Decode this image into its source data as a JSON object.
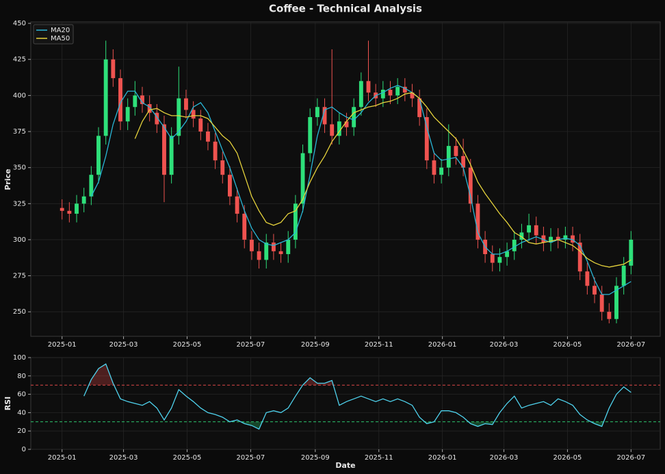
{
  "chart_data": [
    {
      "type": "candlestick",
      "title": "Coffee - Technical Analysis",
      "ylabel": "Price",
      "x": [
        0,
        7,
        14,
        21,
        28,
        35,
        42,
        49,
        56,
        63,
        70,
        77,
        84,
        91,
        98,
        105,
        112,
        119,
        126,
        133,
        140,
        147,
        154,
        161,
        168,
        175,
        182,
        189,
        196,
        203,
        210,
        217,
        224,
        231,
        238,
        245,
        252,
        259,
        266,
        273,
        280,
        287,
        294,
        301,
        308,
        315,
        322,
        329,
        336,
        343,
        350,
        357,
        364,
        371,
        378,
        385,
        392,
        399,
        406,
        413,
        420,
        427,
        434,
        441,
        448,
        455,
        462,
        469,
        476,
        483,
        490,
        497,
        504,
        511,
        518,
        525,
        532,
        539,
        546
      ],
      "open": [
        322,
        320,
        318,
        325,
        330,
        345,
        372,
        425,
        412,
        382,
        392,
        400,
        394,
        388,
        380,
        345,
        372,
        398,
        390,
        384,
        375,
        368,
        355,
        345,
        330,
        318,
        300,
        292,
        286,
        298,
        292,
        290,
        300,
        325,
        360,
        385,
        392,
        380,
        372,
        382,
        378,
        392,
        410,
        402,
        398,
        404,
        400,
        406,
        402,
        398,
        385,
        355,
        345,
        350,
        365,
        358,
        350,
        325,
        300,
        290,
        284,
        288,
        292,
        300,
        305,
        310,
        303,
        298,
        302,
        300,
        303,
        298,
        278,
        268,
        262,
        250,
        245,
        268,
        282
      ],
      "high": [
        328,
        326,
        331,
        336,
        351,
        378,
        438,
        432,
        418,
        398,
        410,
        406,
        400,
        394,
        386,
        378,
        420,
        404,
        396,
        390,
        381,
        374,
        361,
        351,
        336,
        324,
        306,
        298,
        304,
        304,
        298,
        306,
        331,
        366,
        391,
        398,
        398,
        432,
        388,
        388,
        398,
        416,
        438,
        408,
        410,
        410,
        412,
        412,
        408,
        404,
        391,
        361,
        356,
        380,
        371,
        370,
        356,
        331,
        306,
        296,
        294,
        298,
        306,
        311,
        318,
        316,
        309,
        308,
        308,
        309,
        309,
        304,
        284,
        274,
        268,
        256,
        274,
        288,
        306
      ],
      "low": [
        314,
        312,
        312,
        319,
        324,
        339,
        366,
        406,
        376,
        376,
        386,
        388,
        382,
        374,
        326,
        339,
        366,
        384,
        378,
        369,
        362,
        349,
        339,
        324,
        312,
        294,
        286,
        280,
        280,
        286,
        284,
        284,
        294,
        319,
        354,
        379,
        374,
        366,
        366,
        372,
        372,
        386,
        396,
        392,
        392,
        394,
        394,
        396,
        392,
        379,
        349,
        339,
        339,
        344,
        352,
        344,
        319,
        294,
        284,
        278,
        278,
        282,
        286,
        294,
        299,
        297,
        292,
        292,
        294,
        294,
        292,
        272,
        262,
        256,
        244,
        242,
        242,
        262,
        276
      ],
      "close": [
        320,
        318,
        325,
        330,
        345,
        372,
        425,
        412,
        382,
        392,
        400,
        394,
        388,
        380,
        345,
        372,
        398,
        390,
        384,
        375,
        368,
        355,
        345,
        330,
        318,
        300,
        292,
        286,
        298,
        292,
        290,
        300,
        325,
        360,
        385,
        392,
        380,
        372,
        382,
        378,
        392,
        410,
        402,
        398,
        404,
        400,
        406,
        402,
        398,
        385,
        355,
        345,
        350,
        365,
        358,
        350,
        325,
        300,
        290,
        284,
        288,
        292,
        300,
        305,
        310,
        303,
        298,
        302,
        300,
        303,
        298,
        278,
        268,
        262,
        250,
        245,
        268,
        282,
        300
      ],
      "up_color": "#2ee07a",
      "down_color": "#ef5350",
      "series": [
        {
          "name": "MA20",
          "color": "#29b6d6",
          "values": [
            null,
            null,
            null,
            null,
            330,
            340,
            358,
            380,
            395,
            403,
            403,
            395,
            392,
            385,
            378,
            370,
            375,
            382,
            392,
            395,
            388,
            375,
            362,
            350,
            335,
            320,
            308,
            300,
            297,
            296,
            298,
            300,
            305,
            320,
            345,
            372,
            390,
            392,
            388,
            385,
            383,
            388,
            395,
            400,
            402,
            405,
            407,
            405,
            402,
            398,
            378,
            360,
            355,
            356,
            357,
            350,
            330,
            305,
            295,
            290,
            290,
            292,
            295,
            298,
            300,
            302,
            300,
            298,
            300,
            301,
            300,
            296,
            285,
            272,
            262,
            262,
            265,
            268,
            271
          ]
        },
        {
          "name": "MA50",
          "color": "#e6d33c",
          "values": [
            null,
            null,
            null,
            null,
            null,
            null,
            null,
            null,
            null,
            null,
            370,
            382,
            390,
            391,
            388,
            386,
            386,
            385,
            386,
            386,
            384,
            378,
            372,
            368,
            360,
            345,
            330,
            320,
            312,
            310,
            312,
            318,
            320,
            328,
            340,
            350,
            358,
            368,
            375,
            382,
            388,
            390,
            392,
            393,
            395,
            396,
            398,
            401,
            402,
            398,
            392,
            385,
            380,
            375,
            370,
            362,
            352,
            340,
            332,
            325,
            318,
            312,
            305,
            302,
            298,
            297,
            298,
            299,
            300,
            298,
            296,
            292,
            287,
            284,
            282,
            281,
            282,
            283,
            286
          ]
        }
      ],
      "xlim": [
        -30,
        574
      ],
      "ylim": [
        233,
        451
      ],
      "xticks": [
        {
          "value": 0,
          "label": "2025-01"
        },
        {
          "value": 59,
          "label": "2025-03"
        },
        {
          "value": 120,
          "label": "2025-05"
        },
        {
          "value": 181,
          "label": "2025-07"
        },
        {
          "value": 243,
          "label": "2025-09"
        },
        {
          "value": 304,
          "label": "2025-11"
        },
        {
          "value": 365,
          "label": "2026-01"
        },
        {
          "value": 424,
          "label": "2026-03"
        },
        {
          "value": 485,
          "label": "2026-05"
        },
        {
          "value": 546,
          "label": "2026-07"
        }
      ],
      "yticks": [
        250,
        275,
        300,
        325,
        350,
        375,
        400,
        425,
        450
      ],
      "grid": true,
      "legend": "upper left"
    },
    {
      "type": "line",
      "ylabel": "RSI",
      "xlabel": "Date",
      "x": [
        0,
        7,
        14,
        21,
        28,
        35,
        42,
        49,
        56,
        63,
        70,
        77,
        84,
        91,
        98,
        105,
        112,
        119,
        126,
        133,
        140,
        147,
        154,
        161,
        168,
        175,
        182,
        189,
        196,
        203,
        210,
        217,
        224,
        231,
        238,
        245,
        252,
        259,
        266,
        273,
        280,
        287,
        294,
        301,
        308,
        315,
        322,
        329,
        336,
        343,
        350,
        357,
        364,
        371,
        378,
        385,
        392,
        399,
        406,
        413,
        420,
        427,
        434,
        441,
        448,
        455,
        462,
        469,
        476,
        483,
        490,
        497,
        504,
        511,
        518,
        525,
        532,
        539,
        546
      ],
      "values": [
        null,
        null,
        null,
        58,
        76,
        88,
        93,
        72,
        55,
        52,
        50,
        48,
        52,
        45,
        32,
        45,
        65,
        58,
        52,
        45,
        40,
        38,
        35,
        30,
        32,
        28,
        26,
        22,
        40,
        42,
        40,
        45,
        58,
        70,
        78,
        72,
        72,
        75,
        48,
        52,
        55,
        58,
        55,
        52,
        55,
        52,
        55,
        52,
        48,
        35,
        28,
        30,
        42,
        42,
        40,
        35,
        28,
        25,
        28,
        27,
        40,
        50,
        58,
        45,
        48,
        50,
        52,
        48,
        55,
        52,
        48,
        38,
        32,
        28,
        25,
        45,
        60,
        68,
        62
      ],
      "color": "#4fd3ee",
      "hlines": [
        {
          "value": 70,
          "color": "#e04848"
        },
        {
          "value": 30,
          "color": "#2ecc71"
        }
      ],
      "xlim": [
        -30,
        574
      ],
      "ylim": [
        0,
        100
      ],
      "xticks": [
        {
          "value": 0,
          "label": "2025-01"
        },
        {
          "value": 59,
          "label": "2025-03"
        },
        {
          "value": 120,
          "label": "2025-05"
        },
        {
          "value": 181,
          "label": "2025-07"
        },
        {
          "value": 243,
          "label": "2025-09"
        },
        {
          "value": 304,
          "label": "2025-11"
        },
        {
          "value": 365,
          "label": "2026-01"
        },
        {
          "value": 424,
          "label": "2026-03"
        },
        {
          "value": 485,
          "label": "2026-05"
        },
        {
          "value": 546,
          "label": "2026-07"
        }
      ],
      "yticks": [
        0,
        20,
        40,
        60,
        80,
        100
      ],
      "grid": true
    }
  ]
}
